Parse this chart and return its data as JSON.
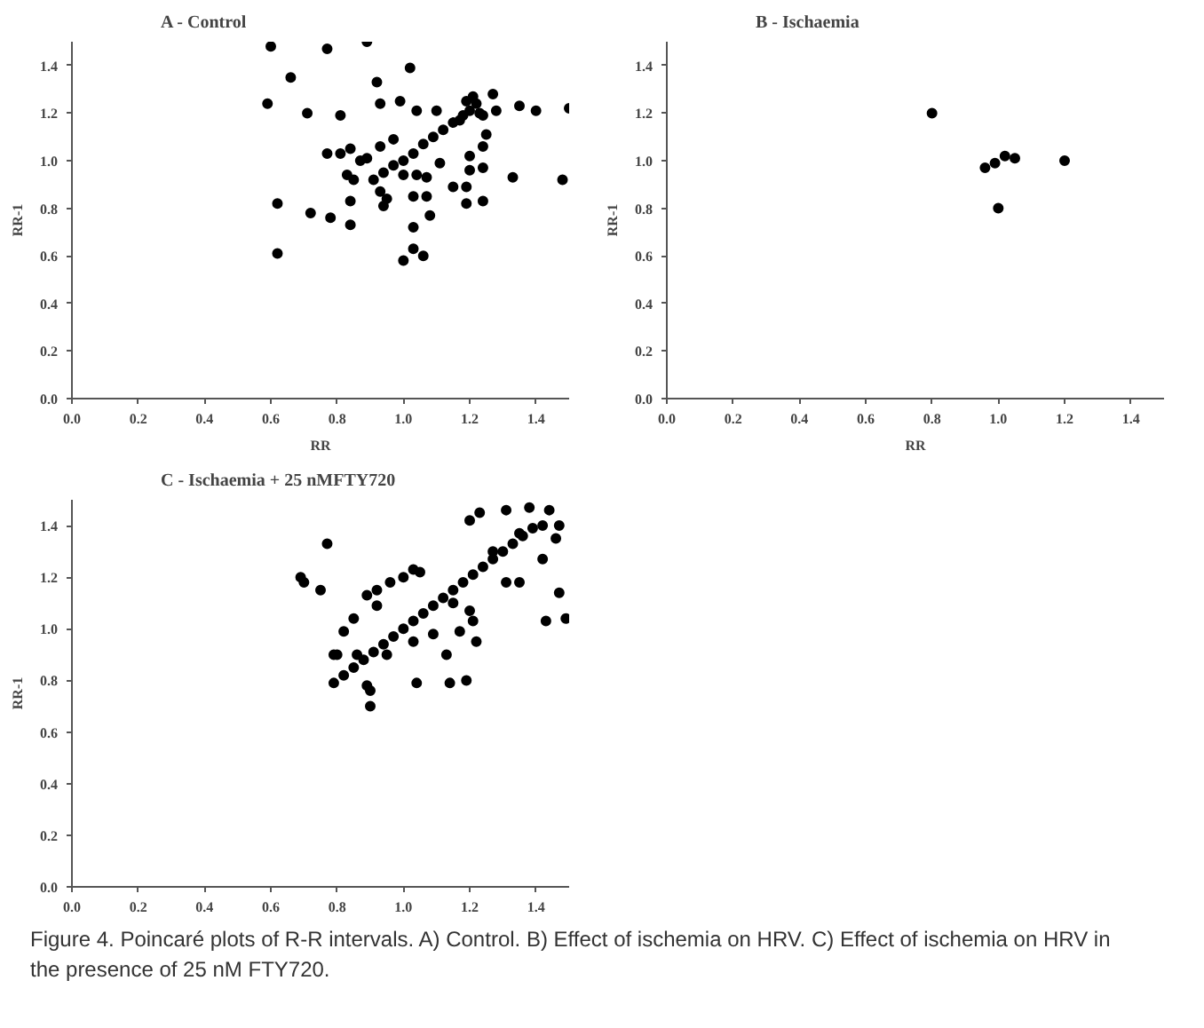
{
  "chart_data": [
    {
      "type": "scatter",
      "title": "A - Control",
      "xlabel": "RR",
      "ylabel": "RR-1",
      "color": "#000000",
      "marker": "circle",
      "xlim": [
        0,
        1.5
      ],
      "ylim": [
        0,
        1.5
      ],
      "xticks": [
        {
          "value": 0,
          "label": "0.0"
        },
        {
          "value": 0.2,
          "label": "0.2"
        },
        {
          "value": 0.4,
          "label": "0.4"
        },
        {
          "value": 0.6,
          "label": "0.6"
        },
        {
          "value": 0.8,
          "label": "0.8"
        },
        {
          "value": 1.0,
          "label": "1.0"
        },
        {
          "value": 1.2,
          "label": "1.2"
        },
        {
          "value": 1.4,
          "label": "1.4"
        }
      ],
      "yticks": [
        {
          "value": 0,
          "label": "0.0"
        },
        {
          "value": 0.2,
          "label": "0.2"
        },
        {
          "value": 0.4,
          "label": "0.4"
        },
        {
          "value": 0.6,
          "label": "0.6"
        },
        {
          "value": 0.8,
          "label": "0.8"
        },
        {
          "value": 1.0,
          "label": "1.0"
        },
        {
          "value": 1.2,
          "label": "1.2"
        },
        {
          "value": 1.4,
          "label": "1.4"
        }
      ],
      "x": [
        0.6,
        0.77,
        0.89,
        1.02,
        0.66,
        0.92,
        0.59,
        0.71,
        0.81,
        0.93,
        0.99,
        1.27,
        1.35,
        1.4,
        1.5,
        1.28,
        1.04,
        1.1,
        0.77,
        0.81,
        0.84,
        0.97,
        0.93,
        0.87,
        0.89,
        0.83,
        0.85,
        1.11,
        1.15,
        1.19,
        1.2,
        1.24,
        1.2,
        1.24,
        1.25,
        1.33,
        1.48,
        0.62,
        0.72,
        0.78,
        0.84,
        0.84,
        0.62,
        0.93,
        0.94,
        0.95,
        1.07,
        1.08,
        1.03,
        1.03,
        1.0,
        1.06,
        1.19,
        1.24,
        1.0,
        1.04,
        1.07,
        1.03,
        0.91,
        0.94,
        0.97,
        1.0,
        1.03,
        1.06,
        1.09,
        1.12,
        1.15,
        1.18,
        1.2,
        1.22,
        1.23,
        1.19,
        1.21,
        1.17,
        1.24
      ],
      "values": [
        1.48,
        1.47,
        1.5,
        1.39,
        1.35,
        1.33,
        1.24,
        1.2,
        1.19,
        1.24,
        1.25,
        1.28,
        1.23,
        1.21,
        1.22,
        1.21,
        1.21,
        1.21,
        1.03,
        1.03,
        1.05,
        1.09,
        1.06,
        1.0,
        1.01,
        0.94,
        0.92,
        0.99,
        0.89,
        0.89,
        0.96,
        0.97,
        1.02,
        1.06,
        1.11,
        0.93,
        0.92,
        0.82,
        0.78,
        0.76,
        0.83,
        0.73,
        0.61,
        0.87,
        0.81,
        0.84,
        0.85,
        0.77,
        0.72,
        0.63,
        0.58,
        0.6,
        0.82,
        0.83,
        0.94,
        0.94,
        0.93,
        0.85,
        0.92,
        0.95,
        0.98,
        1.0,
        1.03,
        1.07,
        1.1,
        1.13,
        1.16,
        1.19,
        1.21,
        1.24,
        1.2,
        1.25,
        1.27,
        1.17,
        1.19
      ]
    },
    {
      "type": "scatter",
      "title": "B - Ischaemia",
      "xlabel": "RR",
      "ylabel": "RR-1",
      "color": "#000000",
      "marker": "circle",
      "xlim": [
        0,
        1.5
      ],
      "ylim": [
        0,
        1.5
      ],
      "xticks": [
        {
          "value": 0,
          "label": "0.0"
        },
        {
          "value": 0.2,
          "label": "0.2"
        },
        {
          "value": 0.4,
          "label": "0.4"
        },
        {
          "value": 0.6,
          "label": "0.6"
        },
        {
          "value": 0.8,
          "label": "0.8"
        },
        {
          "value": 1.0,
          "label": "1.0"
        },
        {
          "value": 1.2,
          "label": "1.2"
        },
        {
          "value": 1.4,
          "label": "1.4"
        }
      ],
      "yticks": [
        {
          "value": 0,
          "label": "0.0"
        },
        {
          "value": 0.2,
          "label": "0.2"
        },
        {
          "value": 0.4,
          "label": "0.4"
        },
        {
          "value": 0.6,
          "label": "0.6"
        },
        {
          "value": 0.8,
          "label": "0.8"
        },
        {
          "value": 1.0,
          "label": "1.0"
        },
        {
          "value": 1.2,
          "label": "1.2"
        },
        {
          "value": 1.4,
          "label": "1.4"
        }
      ],
      "x": [
        0.8,
        1.0,
        1.2,
        0.96,
        0.99,
        1.02,
        1.05
      ],
      "values": [
        1.2,
        0.8,
        1.0,
        0.97,
        0.99,
        1.02,
        1.01
      ]
    },
    {
      "type": "scatter",
      "title": "C - Ischaemia + 25 nMFTY720",
      "ylabel": "RR-1",
      "color": "#000000",
      "marker": "circle",
      "xlim": [
        0,
        1.5
      ],
      "ylim": [
        0,
        1.5
      ],
      "xticks": [
        {
          "value": 0,
          "label": "0.0"
        },
        {
          "value": 0.2,
          "label": "0.2"
        },
        {
          "value": 0.4,
          "label": "0.4"
        },
        {
          "value": 0.6,
          "label": "0.6"
        },
        {
          "value": 0.8,
          "label": "0.8"
        },
        {
          "value": 1.0,
          "label": "1.0"
        },
        {
          "value": 1.2,
          "label": "1.2"
        },
        {
          "value": 1.4,
          "label": "1.4"
        }
      ],
      "yticks": [
        {
          "value": 0,
          "label": "0.0"
        },
        {
          "value": 0.2,
          "label": "0.2"
        },
        {
          "value": 0.4,
          "label": "0.4"
        },
        {
          "value": 0.6,
          "label": "0.6"
        },
        {
          "value": 0.8,
          "label": "0.8"
        },
        {
          "value": 1.0,
          "label": "1.0"
        },
        {
          "value": 1.2,
          "label": "1.2"
        },
        {
          "value": 1.4,
          "label": "1.4"
        }
      ],
      "x": [
        0.79,
        0.82,
        0.85,
        0.88,
        0.91,
        0.94,
        0.97,
        1.0,
        1.03,
        1.06,
        1.09,
        1.12,
        1.15,
        1.18,
        1.21,
        1.24,
        1.27,
        1.3,
        1.33,
        1.36,
        1.39,
        1.42,
        0.69,
        0.7,
        0.75,
        0.77,
        0.79,
        0.82,
        0.85,
        0.89,
        0.92,
        0.96,
        1.0,
        1.03,
        1.05,
        0.92,
        0.9,
        0.9,
        0.89,
        1.04,
        1.14,
        1.19,
        1.09,
        1.13,
        1.17,
        1.21,
        1.2,
        1.22,
        1.2,
        1.23,
        1.31,
        1.38,
        1.44,
        1.47,
        1.31,
        1.35,
        1.42,
        1.46,
        1.47,
        1.43,
        1.49,
        1.15,
        1.27,
        1.35,
        1.03,
        0.95,
        0.86,
        0.8
      ],
      "values": [
        0.79,
        0.82,
        0.85,
        0.88,
        0.91,
        0.94,
        0.97,
        1.0,
        1.03,
        1.06,
        1.09,
        1.12,
        1.15,
        1.18,
        1.21,
        1.24,
        1.27,
        1.3,
        1.33,
        1.36,
        1.39,
        1.4,
        1.2,
        1.18,
        1.15,
        1.33,
        0.9,
        0.99,
        1.04,
        1.13,
        1.15,
        1.18,
        1.2,
        1.23,
        1.22,
        1.09,
        0.76,
        0.7,
        0.78,
        0.79,
        0.79,
        0.8,
        0.98,
        0.9,
        0.99,
        1.03,
        1.07,
        0.95,
        1.42,
        1.45,
        1.46,
        1.47,
        1.46,
        1.4,
        1.18,
        1.18,
        1.27,
        1.35,
        1.14,
        1.03,
        1.04,
        1.1,
        1.3,
        1.37,
        0.95,
        0.9,
        0.9,
        0.9
      ],
      "annotations": [
        "Figure 4. Poincaré plots of R-R intervals. A) Control. B) Effect of ischemia on HRV. C) Effect of ischemia on HRV in the presence of 25 nM FTY720."
      ]
    }
  ]
}
